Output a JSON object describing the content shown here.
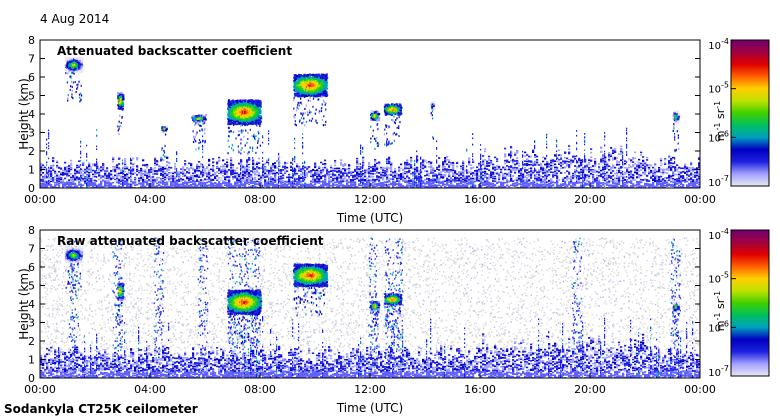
{
  "date": "4 Aug 2014",
  "footer": "Sodankyla CT25K ceilometer",
  "colorbar_stops": [
    "#e8e8f0",
    "#a0a0ff",
    "#2020e0",
    "#0000c0",
    "#00a0c0",
    "#00c060",
    "#40d000",
    "#c0e000",
    "#ffd000",
    "#ff6000",
    "#e00000",
    "#a00040",
    "#700070"
  ],
  "chart_data": [
    {
      "type": "heatmap",
      "title": "Attenuated backscatter coefficient",
      "xlabel": "Time (UTC)",
      "ylabel": "Height (km)",
      "x_ticks": [
        "00:00",
        "04:00",
        "08:00",
        "12:00",
        "16:00",
        "20:00",
        "00:00"
      ],
      "xlim_hours": [
        0,
        24
      ],
      "y_ticks": [
        0,
        1,
        2,
        3,
        4,
        5,
        6,
        7,
        8
      ],
      "ylim": [
        0,
        8
      ],
      "colorbar": {
        "unit": "m-1 sr-1",
        "tick_labels": [
          "10-4",
          "10-5",
          "10-6",
          "10-7"
        ],
        "log_range": [
          -7,
          -4
        ]
      },
      "noise_level": "low",
      "cloud_layers": [
        {
          "t0": 0.9,
          "t1": 1.5,
          "h0": 6.3,
          "h1": 7.1,
          "peak_log": -5.0
        },
        {
          "t0": 2.8,
          "t1": 3.0,
          "h0": 4.3,
          "h1": 5.2,
          "peak_log": -4.5
        },
        {
          "t0": 4.4,
          "t1": 4.6,
          "h0": 3.1,
          "h1": 3.4,
          "peak_log": -4.8
        },
        {
          "t0": 5.5,
          "t1": 6.0,
          "h0": 3.6,
          "h1": 4.0,
          "peak_log": -4.8
        },
        {
          "t0": 6.8,
          "t1": 8.0,
          "h0": 3.5,
          "h1": 4.8,
          "peak_log": -4.3
        },
        {
          "t0": 9.2,
          "t1": 10.4,
          "h0": 5.0,
          "h1": 6.2,
          "peak_log": -4.3
        },
        {
          "t0": 12.0,
          "t1": 12.3,
          "h0": 3.7,
          "h1": 4.2,
          "peak_log": -4.6
        },
        {
          "t0": 12.5,
          "t1": 13.1,
          "h0": 4.0,
          "h1": 4.6,
          "peak_log": -4.4
        },
        {
          "t0": 14.2,
          "t1": 14.3,
          "h0": 4.3,
          "h1": 4.7,
          "peak_log": -5.0
        },
        {
          "t0": 23.0,
          "t1": 23.2,
          "h0": 3.6,
          "h1": 4.2,
          "peak_log": -5.0
        }
      ]
    },
    {
      "type": "heatmap",
      "title": "Raw attenuated backscatter coefficient",
      "xlabel": "Time (UTC)",
      "ylabel": "Height (km)",
      "x_ticks": [
        "00:00",
        "04:00",
        "08:00",
        "12:00",
        "16:00",
        "20:00",
        "00:00"
      ],
      "xlim_hours": [
        0,
        24
      ],
      "y_ticks": [
        0,
        1,
        2,
        3,
        4,
        5,
        6,
        7,
        8
      ],
      "ylim": [
        0,
        8
      ],
      "colorbar": {
        "unit": "m-1 sr-1",
        "tick_labels": [
          "10-4",
          "10-5",
          "10-6",
          "10-7"
        ],
        "log_range": [
          -7,
          -4
        ]
      },
      "noise_level": "high",
      "cloud_layers": [
        {
          "t0": 0.9,
          "t1": 1.5,
          "h0": 6.3,
          "h1": 7.1,
          "peak_log": -5.0
        },
        {
          "t0": 2.8,
          "t1": 3.0,
          "h0": 4.3,
          "h1": 5.2,
          "peak_log": -4.5
        },
        {
          "t0": 6.8,
          "t1": 8.0,
          "h0": 3.5,
          "h1": 4.8,
          "peak_log": -4.3
        },
        {
          "t0": 9.2,
          "t1": 10.4,
          "h0": 5.0,
          "h1": 6.2,
          "peak_log": -4.3
        },
        {
          "t0": 12.0,
          "t1": 12.3,
          "h0": 3.7,
          "h1": 4.2,
          "peak_log": -4.6
        },
        {
          "t0": 12.5,
          "t1": 13.1,
          "h0": 4.0,
          "h1": 4.6,
          "peak_log": -4.4
        },
        {
          "t0": 23.0,
          "t1": 23.2,
          "h0": 3.6,
          "h1": 4.2,
          "peak_log": -5.0
        }
      ]
    }
  ]
}
